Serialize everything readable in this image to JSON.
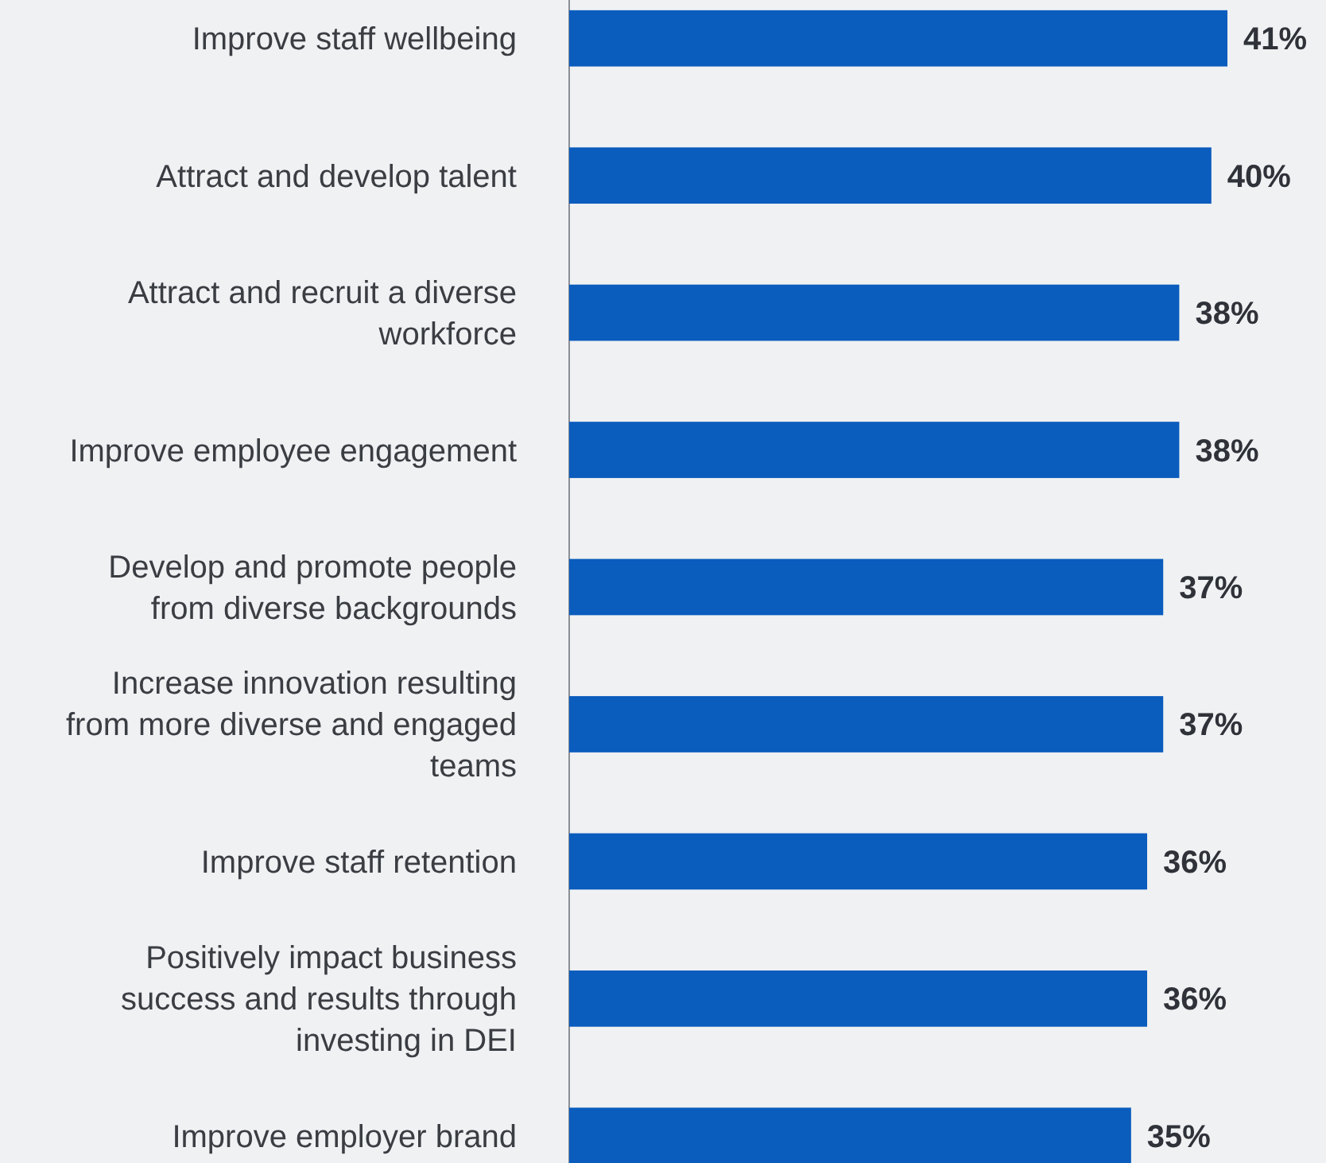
{
  "chart_data": {
    "type": "bar",
    "orientation": "horizontal",
    "categories": [
      "Improve staff wellbeing",
      "Attract and develop talent",
      "Attract and recruit a diverse workforce",
      "Improve employee engagement",
      "Develop and promote people from diverse backgrounds",
      "Increase innovation resulting from more diverse and engaged teams",
      "Improve staff retention",
      "Positively impact business success and results through investing in DEI",
      "Improve employer brand"
    ],
    "values": [
      41,
      40,
      38,
      38,
      37,
      37,
      36,
      36,
      35
    ],
    "color": "#0a5cbd",
    "data_labels": true,
    "value_labels": [
      "41%",
      "40%",
      "38%",
      "38%",
      "37%",
      "37%",
      "36%",
      "36%",
      "35%"
    ]
  }
}
